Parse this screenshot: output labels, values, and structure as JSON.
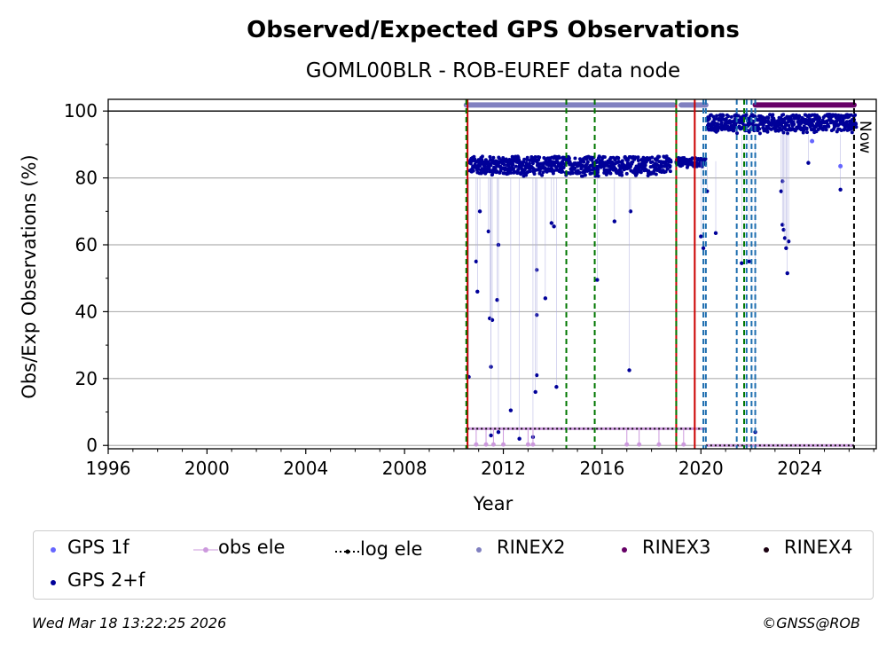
{
  "footer": {
    "timestamp": "Wed Mar 18 13:22:25 2026",
    "copyright": "©GNSS@ROB"
  },
  "colors": {
    "gps1f": "#6666ff",
    "gps2f": "#000099",
    "obs_ele": "#cc99dd",
    "rinex2": "#8080c0",
    "rinex3": "#660066",
    "rinex4": "#1a0010",
    "red_line": "#cc0000",
    "green_line": "#007700",
    "blue_line": "#1f6fb0",
    "grid": "#b0b0b0"
  },
  "chart_data": {
    "type": "scatter",
    "title": "Observed/Expected GPS Observations",
    "subtitle": "GOML00BLR - ROB-EUREF data node",
    "xlabel": "Year",
    "ylabel": "Obs/Exp Observations (%)",
    "xlim": [
      1996,
      2027.1
    ],
    "ylim": [
      -1,
      103.5
    ],
    "xticks": [
      1996,
      2000,
      2004,
      2008,
      2012,
      2016,
      2020,
      2024
    ],
    "yticks": [
      0,
      20,
      40,
      60,
      80,
      100
    ],
    "grid": "horizontal",
    "now_label": "Now",
    "now_x": 2026.2,
    "legend": [
      {
        "name": "GPS 1f",
        "marker": "dot"
      },
      {
        "name": "obs ele",
        "marker": "line-dot"
      },
      {
        "name": "log ele",
        "marker": "dotted-line"
      },
      {
        "name": "RINEX2",
        "marker": "dot"
      },
      {
        "name": "RINEX3",
        "marker": "dot"
      },
      {
        "name": "RINEX4",
        "marker": "dot"
      },
      {
        "name": "GPS 2+f",
        "marker": "dot"
      }
    ],
    "legend_position": "below",
    "vlines": {
      "red": [
        2010.55,
        2019.0,
        2019.75
      ],
      "green_dashed": [
        2010.5,
        2014.55,
        2015.7,
        2019.0,
        2021.75
      ],
      "blue_dashed": [
        2020.1,
        2020.2,
        2021.45,
        2021.85,
        2022.05,
        2022.2
      ],
      "black_dashed": [
        2026.2
      ]
    },
    "rinex_bars": [
      {
        "name": "RINEX2",
        "x_start": 2010.5,
        "x_end": 2020.2,
        "gap": [
          2018.9,
          2019.2
        ],
        "y": 101.8
      },
      {
        "name": "RINEX3",
        "x_start": 2022.2,
        "x_end": 2026.2,
        "y": 101.8
      }
    ],
    "series": [
      {
        "name": "GPS 2+f",
        "segments": [
          {
            "x_start": 2010.6,
            "x_end": 2018.8,
            "y_min": 76,
            "y_max": 87.5,
            "outliers": [
              [
                2010.6,
                20.5
              ],
              [
                2010.9,
                55
              ],
              [
                2010.95,
                46
              ],
              [
                2011.05,
                70
              ],
              [
                2011.4,
                64
              ],
              [
                2011.45,
                38
              ],
              [
                2011.55,
                37.5
              ],
              [
                2011.5,
                23.5
              ],
              [
                2011.75,
                43.5
              ],
              [
                2011.8,
                60
              ],
              [
                2012.3,
                10.5
              ],
              [
                2012.65,
                2
              ],
              [
                2013.2,
                2.5
              ],
              [
                2013.35,
                52.5
              ],
              [
                2013.35,
                39
              ],
              [
                2013.35,
                21
              ],
              [
                2013.3,
                16
              ],
              [
                2013.7,
                44
              ],
              [
                2014.15,
                17.5
              ],
              [
                2013.95,
                66.5
              ],
              [
                2014.05,
                65.5
              ],
              [
                2015.8,
                49.5
              ],
              [
                2016.5,
                67
              ],
              [
                2017.15,
                70
              ],
              [
                2017.1,
                22.5
              ],
              [
                2011.5,
                3
              ],
              [
                2011.8,
                4
              ]
            ]
          },
          {
            "x_start": 2019.0,
            "x_end": 2020.2,
            "y_min": 81,
            "y_max": 86.5,
            "outliers": [
              [
                2020.0,
                62.5
              ],
              [
                2020.1,
                59
              ],
              [
                2020.25,
                76
              ],
              [
                2020.6,
                63.5
              ]
            ]
          },
          {
            "x_start": 2020.25,
            "x_end": 2026.3,
            "y_min": 89,
            "y_max": 100,
            "outliers": [
              [
                2021.65,
                54.5
              ],
              [
                2021.95,
                55
              ],
              [
                2022.2,
                4
              ],
              [
                2023.3,
                79
              ],
              [
                2023.25,
                76
              ],
              [
                2023.3,
                66
              ],
              [
                2023.35,
                64.5
              ],
              [
                2023.4,
                62
              ],
              [
                2023.55,
                61
              ],
              [
                2023.5,
                51.5
              ],
              [
                2023.45,
                59
              ],
              [
                2024.35,
                84.5
              ],
              [
                2025.65,
                76.5
              ]
            ]
          }
        ]
      },
      {
        "name": "GPS 1f",
        "points": [
          [
            2025.65,
            83.5
          ],
          [
            2024.5,
            91
          ]
        ]
      },
      {
        "name": "obs ele",
        "segments": [
          {
            "x_start": 2010.55,
            "x_end": 2020.2,
            "y": 5,
            "drops": [
              2010.9,
              2011.3,
              2011.6,
              2012.0,
              2013.0,
              2013.2,
              2017.0,
              2017.5,
              2018.3,
              2019.3
            ]
          },
          {
            "x_start": 2020.2,
            "x_end": 2026.2,
            "y": 0
          }
        ]
      },
      {
        "name": "log ele",
        "segments": [
          {
            "x_start": 2010.55,
            "x_end": 2020.2,
            "y": 5
          },
          {
            "x_start": 2020.2,
            "x_end": 2026.2,
            "y": 0
          }
        ]
      }
    ]
  }
}
